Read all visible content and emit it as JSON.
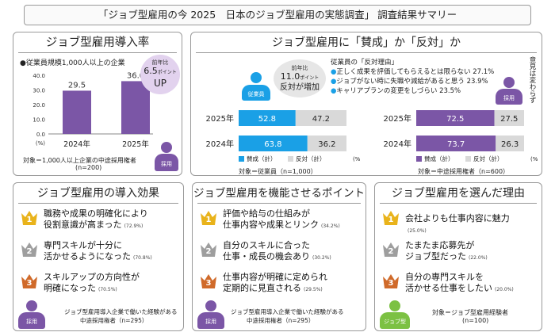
{
  "header": {
    "title": "「ジョブ型雇用の今 2025　日本のジョブ型雇用の実態調査」 調査結果サマリー"
  },
  "panel1": {
    "title": "ジョブ型雇用導入率",
    "subtitle": "●従業員規模1,000人以上の企業",
    "callout_line1": "前年比",
    "callout_value": "6.5",
    "callout_unit": "ポイント",
    "callout_line2": "UP",
    "target": "対象＝1,000人以上企業の中途採用権者",
    "n": "(n=200)",
    "icon_label": "採用"
  },
  "panel2": {
    "title": "ジョブ型雇用に「賛成」か「反対」か",
    "callout_line1": "前年比",
    "callout_value": "11.0",
    "callout_unit": "ポイント",
    "callout_line2": "反対が増加",
    "employee_label": "従業員",
    "hire_label": "採用",
    "reasons_title": "従業員の「反対理由」",
    "reasons": [
      "正しく成果を評価してもらえるとは限らない 27.1%",
      "ジョブがない時に失職や減給があると思う 23.9%",
      "キャリアプランの変更をしづらい 23.5%"
    ],
    "vertical_note": "意見は変わらず",
    "unit": "(%)",
    "left_target": "対象＝従業員（n=1,000）",
    "right_target": "対象＝中途採用権者（n=600）"
  },
  "panel3": {
    "title": "ジョブ型雇用の導入効果",
    "items": [
      {
        "rank": "1",
        "line1": "職務や成果の明確化により",
        "line2": "役割意識が高まった",
        "pct": "(72.9%)"
      },
      {
        "rank": "2",
        "line1": "専門スキルが十分に",
        "line2": "活かせるようになった",
        "pct": "(70.8%)"
      },
      {
        "rank": "3",
        "line1": "スキルアップの方向性が",
        "line2": "明確になった",
        "pct": "(70.5%)"
      }
    ],
    "target_line1": "ジョブ型雇用導入企業で働いた経験がある",
    "target_line2": "中途採用権者（n=295）",
    "icon_label": "採用"
  },
  "panel4": {
    "title": "ジョブ型雇用を機能させるポイント",
    "items": [
      {
        "rank": "1",
        "line1": "評価や給与の仕組みが",
        "line2": "仕事内容や成果とリンク",
        "pct": "(34.2%)"
      },
      {
        "rank": "2",
        "line1": "自分のスキルに合った",
        "line2": "仕事・成長の機会あり",
        "pct": "(30.2%)"
      },
      {
        "rank": "3",
        "line1": "仕事内容が明確に定められ",
        "line2": "定期的に見直される",
        "pct": "(29.5%)"
      }
    ],
    "target_line1": "ジョブ型雇用導入企業で働いた経験がある",
    "target_line2": "中途採用権者（n=295）",
    "icon_label": "採用"
  },
  "panel5": {
    "title": "ジョブ型雇用を選んだ理由",
    "items": [
      {
        "rank": "1",
        "line1": "会社よりも仕事内容に魅力",
        "line2": "",
        "pct": "(25.0%)"
      },
      {
        "rank": "2",
        "line1": "たまたま応募先が",
        "line2": "ジョブ型だった",
        "pct": "(22.0%)"
      },
      {
        "rank": "3",
        "line1": "自分の専門スキルを",
        "line2": "活かせる仕事をしたい",
        "pct": "(20.0%)"
      }
    ],
    "target": "対象＝ジョブ型雇用経験者",
    "n": "(n=100)",
    "icon_label": "ジョブ型"
  },
  "colors": {
    "purple": "#7b56a6",
    "blue": "#1aa0e6",
    "gray": "#d9d9d9",
    "gold": "#e9b31b",
    "silver": "#9e9e9e",
    "bronze": "#d06a2a",
    "green": "#7cc143"
  },
  "chart_data": [
    {
      "type": "bar",
      "categories": [
        "2024年",
        "2025年"
      ],
      "values": [
        29.5,
        36.0
      ],
      "ylim": [
        0,
        40
      ],
      "yticks": [
        "40.0",
        "30.0",
        "20.0",
        "10.0",
        "0.0"
      ],
      "yunit": "(%)"
    },
    {
      "type": "bar",
      "orientation": "horizontal-stacked",
      "categories": [
        "2025年",
        "2024年"
      ],
      "series": [
        {
          "name": "賛成（計）",
          "values": [
            52.8,
            63.8
          ]
        },
        {
          "name": "反対（計）",
          "values": [
            47.2,
            36.2
          ]
        }
      ]
    },
    {
      "type": "bar",
      "orientation": "horizontal-stacked",
      "categories": [
        "2025年",
        "2024年"
      ],
      "series": [
        {
          "name": "賛成（計）",
          "values": [
            72.5,
            73.7
          ]
        },
        {
          "name": "反対（計）",
          "values": [
            27.5,
            26.3
          ]
        }
      ]
    }
  ]
}
